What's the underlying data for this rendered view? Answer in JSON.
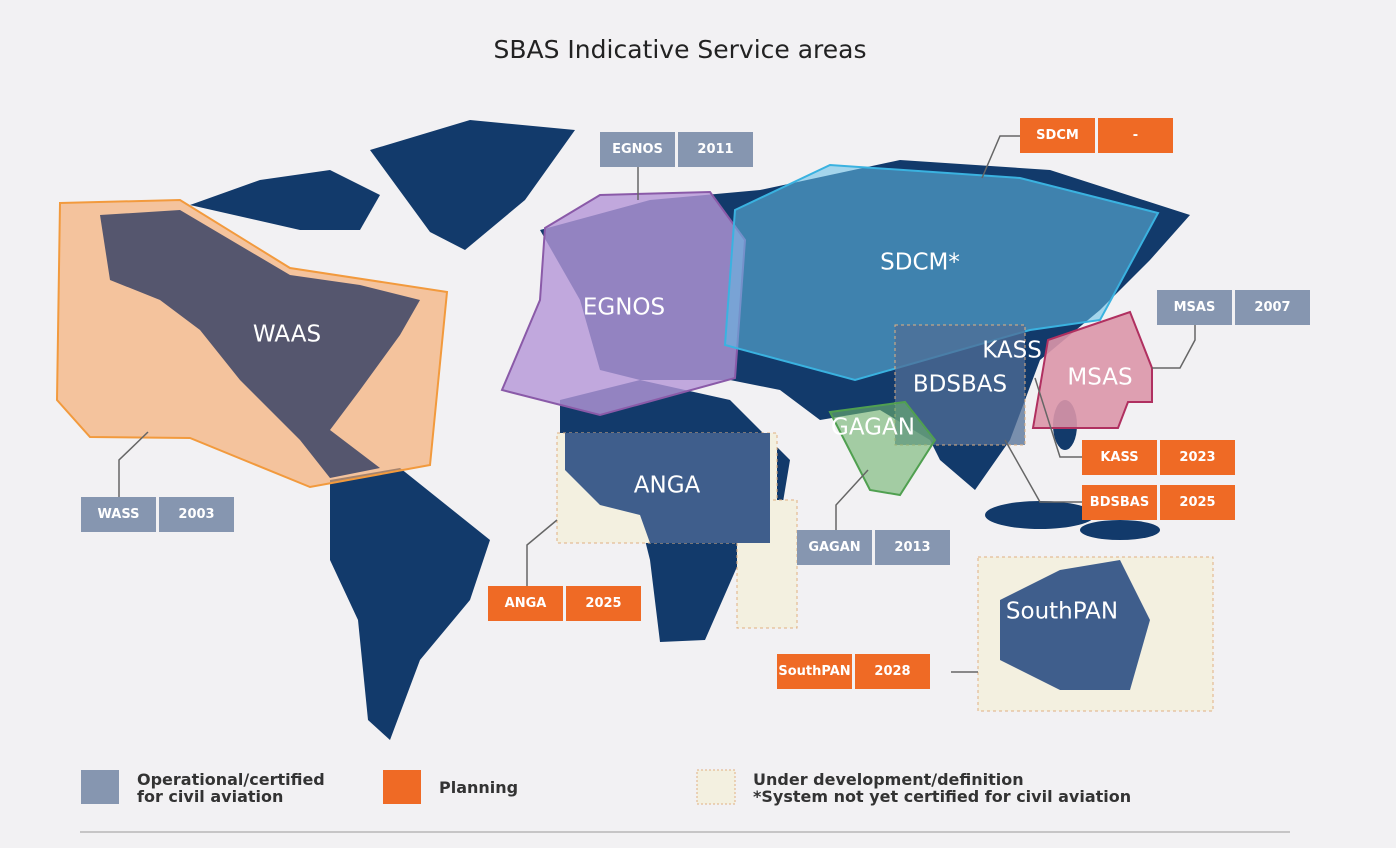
{
  "title": "SBAS Indicative Service areas",
  "regions": [
    "WAAS",
    "EGNOS",
    "SDCM*",
    "KASS",
    "MSAS",
    "BDSBAS",
    "GAGAN",
    "ANGA",
    "SouthPAN"
  ],
  "callouts": [
    {
      "name": "EGNOS",
      "year": "2011",
      "color": "#8696b0"
    },
    {
      "name": "SDCM",
      "year": "-",
      "color": "#ef6a25"
    },
    {
      "name": "MSAS",
      "year": "2007",
      "color": "#8696b0"
    },
    {
      "name": "KASS",
      "year": "2023",
      "color": "#ef6a25"
    },
    {
      "name": "BDSBAS",
      "year": "2025",
      "color": "#ef6a25"
    },
    {
      "name": "GAGAN",
      "year": "2013",
      "color": "#8696b0"
    },
    {
      "name": "SouthPAN",
      "year": "2028",
      "color": "#ef6a25"
    },
    {
      "name": "ANGA",
      "year": "2025",
      "color": "#ef6a25"
    },
    {
      "name": "WASS",
      "year": "2003",
      "color": "#8696b0"
    }
  ],
  "legend": [
    {
      "lines": [
        "Operational/certified",
        "for civil aviation"
      ],
      "color": "#8696b0"
    },
    {
      "lines": [
        "Planning"
      ],
      "color": "#ef6a25"
    },
    {
      "lines": [
        "Under development/definition",
        "*System not yet certified for civil aviation"
      ],
      "color": "#f3f0e0"
    }
  ]
}
